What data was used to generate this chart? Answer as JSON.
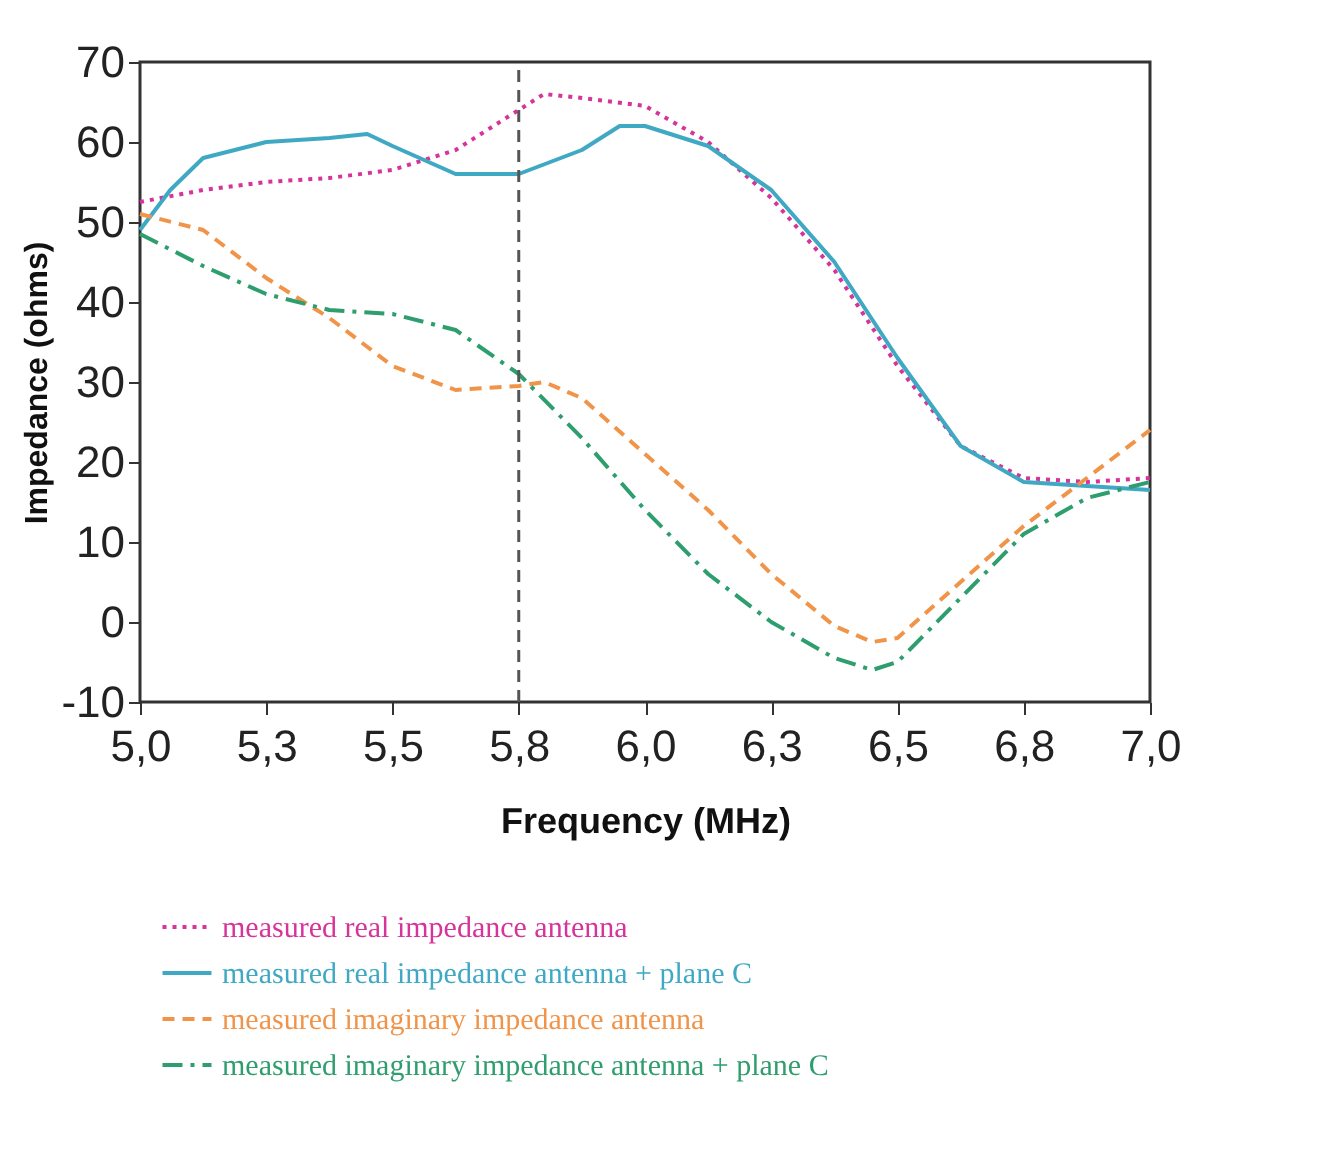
{
  "chart_data": {
    "type": "line",
    "xlabel": "Frequency  (MHz)",
    "ylabel": "Impedance (ohms)",
    "xlim": [
      5.0,
      7.0
    ],
    "ylim": [
      -10,
      70
    ],
    "xticks": [
      {
        "value": 5.0,
        "label": "5,0"
      },
      {
        "value": 5.25,
        "label": "5,3"
      },
      {
        "value": 5.5,
        "label": "5,5"
      },
      {
        "value": 5.75,
        "label": "5,8"
      },
      {
        "value": 6.0,
        "label": "6,0"
      },
      {
        "value": 6.25,
        "label": "6,3"
      },
      {
        "value": 6.5,
        "label": "6,5"
      },
      {
        "value": 6.75,
        "label": "6,8"
      },
      {
        "value": 7.0,
        "label": "7,0"
      }
    ],
    "yticks": [
      -10,
      0,
      10,
      20,
      30,
      40,
      50,
      60,
      70
    ],
    "grid": false,
    "legend": "bottom",
    "marker": "none",
    "series": [
      {
        "name": "measured real impedance antenna",
        "color": "#d6339b",
        "line_style": "dotted",
        "x": [
          5.0,
          5.125,
          5.25,
          5.375,
          5.5,
          5.625,
          5.75,
          5.8,
          5.875,
          6.0,
          6.125,
          6.25,
          6.375,
          6.5,
          6.625,
          6.75,
          6.875,
          7.0
        ],
        "values": [
          52.5,
          54,
          55,
          55.5,
          56.5,
          59,
          64,
          66,
          65.5,
          64.5,
          60,
          53,
          44,
          32,
          22,
          18,
          17.5,
          18
        ]
      },
      {
        "name": "measured real impedance antenna + plane C",
        "color": "#3fa9c4",
        "line_style": "solid",
        "x": [
          5.0,
          5.06,
          5.125,
          5.25,
          5.375,
          5.45,
          5.5,
          5.625,
          5.75,
          5.875,
          5.95,
          6.0,
          6.125,
          6.25,
          6.375,
          6.5,
          6.625,
          6.75,
          6.875,
          7.0
        ],
        "values": [
          49,
          54,
          58,
          60,
          60.5,
          61,
          59.5,
          56,
          56,
          59,
          62,
          62,
          59.5,
          54,
          45,
          33,
          22,
          17.5,
          17,
          16.5
        ]
      },
      {
        "name": "measured imaginary impedance antenna",
        "color": "#f0944a",
        "line_style": "dashed",
        "x": [
          5.0,
          5.125,
          5.25,
          5.375,
          5.5,
          5.625,
          5.75,
          5.8,
          5.875,
          6.0,
          6.125,
          6.25,
          6.375,
          6.45,
          6.5,
          6.625,
          6.75,
          6.875,
          7.0
        ],
        "values": [
          51,
          49,
          43,
          38,
          32,
          29,
          29.5,
          30,
          28,
          21,
          14,
          6,
          -0.5,
          -2.5,
          -2,
          5,
          12,
          18,
          24
        ]
      },
      {
        "name": "measured imaginary impedance antenna + plane C",
        "color": "#2e9e6e",
        "line_style": "dashdot",
        "x": [
          5.0,
          5.125,
          5.25,
          5.375,
          5.5,
          5.625,
          5.75,
          5.875,
          6.0,
          6.125,
          6.25,
          6.375,
          6.45,
          6.5,
          6.625,
          6.75,
          6.875,
          7.0
        ],
        "values": [
          48.5,
          44.5,
          41,
          39,
          38.5,
          36.5,
          31,
          23,
          14,
          6,
          0,
          -4.5,
          -6,
          -5,
          3,
          11,
          15.5,
          17.5
        ]
      }
    ],
    "ref_lines": [
      {
        "axis": "x",
        "value": 5.75,
        "color": "#555555",
        "line_style": "dashed"
      }
    ]
  }
}
